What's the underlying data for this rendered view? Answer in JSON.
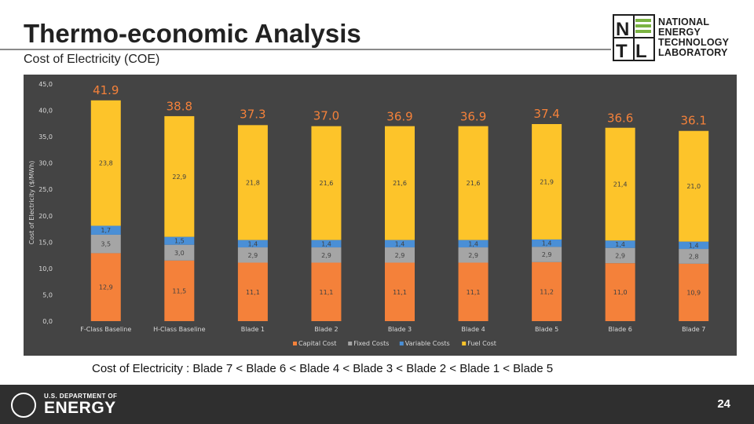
{
  "slide": {
    "title": "Thermo-economic Analysis",
    "subtitle": "Cost of Electricity (COE)",
    "conclusion": "Cost of Electricity : Blade 7 < Blade 6 < Blade 4 < Blade 3 < Blade 2 < Blade 1 < Blade 5",
    "page_number": "24"
  },
  "logo": {
    "lines": [
      "NATIONAL",
      "ENERGY",
      "TECHNOLOGY",
      "LABORATORY"
    ],
    "mark_letters": "NETL",
    "mark_color": "#1e1e1e",
    "accent_color": "#7bb342"
  },
  "footer": {
    "dept_small": "U.S. DEPARTMENT OF",
    "dept_big": "ENERGY",
    "background": "#2f2f2f"
  },
  "chart_data": {
    "type": "bar",
    "stacked": true,
    "categories": [
      "F-Class Baseline",
      "H-Class Baseline",
      "Blade 1",
      "Blade 2",
      "Blade 3",
      "Blade 4",
      "Blade 5",
      "Blade 6",
      "Blade 7"
    ],
    "series": [
      {
        "name": "Capital Cost",
        "color": "#f4813a",
        "values": [
          12.9,
          11.5,
          11.1,
          11.1,
          11.1,
          11.1,
          11.2,
          11.0,
          10.9
        ],
        "labels": [
          "12,9",
          "11,5",
          "11,1",
          "11,1",
          "11,1",
          "11,1",
          "11,2",
          "11,0",
          "10,9"
        ]
      },
      {
        "name": "Fixed Costs",
        "color": "#a5a5a5",
        "values": [
          3.5,
          3.0,
          2.9,
          2.9,
          2.9,
          2.9,
          2.9,
          2.9,
          2.8
        ],
        "labels": [
          "3,5",
          "3,0",
          "2,9",
          "2,9",
          "2,9",
          "2,9",
          "2,9",
          "2,9",
          "2,8"
        ]
      },
      {
        "name": "Variable Costs",
        "color": "#4a8fd6",
        "values": [
          1.7,
          1.5,
          1.4,
          1.4,
          1.4,
          1.4,
          1.4,
          1.4,
          1.4
        ],
        "labels": [
          "1,7",
          "1,5",
          "1,4",
          "1,4",
          "1,4",
          "1,4",
          "1,4",
          "1,4",
          "1,4"
        ]
      },
      {
        "name": "Fuel Cost",
        "color": "#fdc42a",
        "values": [
          23.8,
          22.9,
          21.8,
          21.6,
          21.6,
          21.6,
          21.9,
          21.4,
          21.0
        ],
        "labels": [
          "23,8",
          "22,9",
          "21,8",
          "21,6",
          "21,6",
          "21,6",
          "21,9",
          "21,4",
          "21,0"
        ]
      }
    ],
    "totals": [
      41.9,
      38.8,
      37.3,
      37.0,
      36.9,
      36.9,
      37.4,
      36.6,
      36.1
    ],
    "total_labels": [
      "41.9",
      "38.8",
      "37.3",
      "37.0",
      "36.9",
      "36.9",
      "37.4",
      "36.6",
      "36.1"
    ],
    "total_label_color": "#f4813a",
    "ylabel": "Cost of Electricity ($/MWh)",
    "xlabel": "",
    "ylim": [
      0,
      45
    ],
    "yticks": [
      0,
      5,
      10,
      15,
      20,
      25,
      30,
      35,
      40,
      45
    ],
    "ytick_labels": [
      "0,0",
      "5,0",
      "10,0",
      "15,0",
      "20,0",
      "25,0",
      "30,0",
      "35,0",
      "40,0",
      "45,0"
    ],
    "grid": false,
    "legend_position": "bottom",
    "background": "#444444"
  }
}
